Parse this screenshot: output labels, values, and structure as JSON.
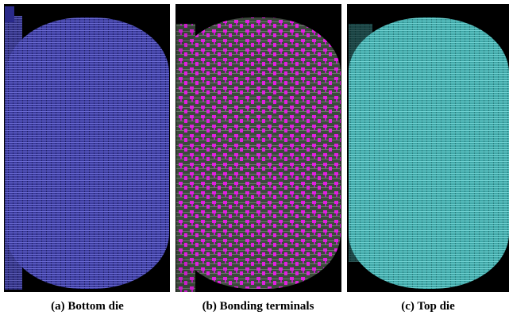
{
  "panels": [
    {
      "caption": "(a) Bottom die"
    },
    {
      "caption": "(b) Bonding terminals"
    },
    {
      "caption": "(c) Top die"
    }
  ]
}
